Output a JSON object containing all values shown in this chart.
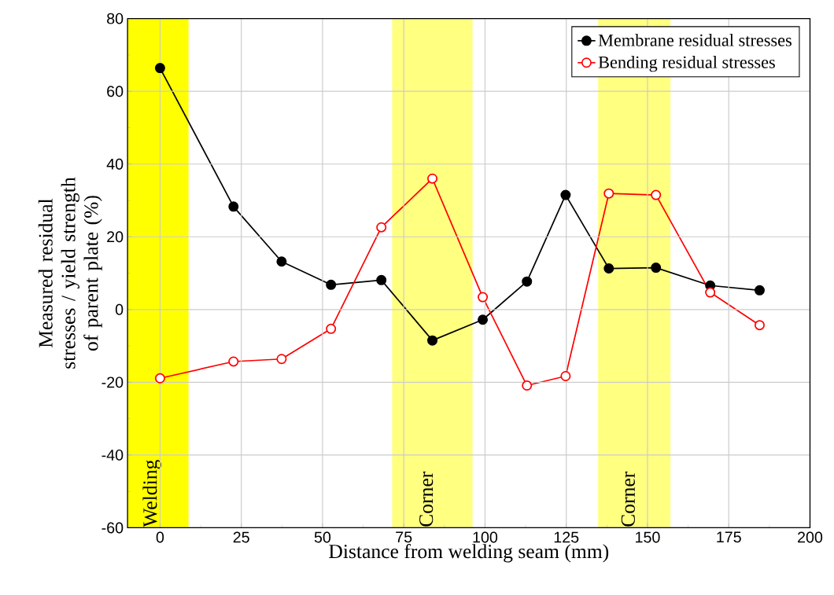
{
  "chart_data": {
    "type": "line",
    "xlabel": "Distance from welding seam (mm)",
    "ylabel": "Measured residual stresses / yield strength of parent plate (%)",
    "x": [
      0,
      22.6,
      37.4,
      52.6,
      68.1,
      83.8,
      99.3,
      112.9,
      124.8,
      138.1,
      152.6,
      169.3,
      184.5
    ],
    "series": [
      {
        "name": "Membrane residual stresses",
        "color": "#000000",
        "marker": "circle",
        "values": [
          66.4,
          28.3,
          13.2,
          6.8,
          8.1,
          -8.5,
          -2.8,
          7.7,
          31.5,
          11.3,
          11.5,
          6.6,
          5.3
        ]
      },
      {
        "name": "Bending residual stresses",
        "color": "#ff0000",
        "marker": "open circle",
        "values": [
          -18.9,
          -14.3,
          -13.6,
          -5.3,
          22.6,
          36.0,
          3.4,
          -20.9,
          -18.3,
          31.9,
          31.5,
          4.7,
          -4.3
        ]
      }
    ],
    "bands": [
      {
        "axis": "x",
        "from": -10,
        "to": 8.8,
        "label": "Welding",
        "color": "#ffff00"
      },
      {
        "axis": "x",
        "from": 71.4,
        "to": 96.2,
        "label": "Corner",
        "color": "#ffff80"
      },
      {
        "axis": "x",
        "from": 134.8,
        "to": 157.1,
        "label": "Corner",
        "color": "#ffff80"
      }
    ],
    "xlim": [
      -10,
      200
    ],
    "ylim": [
      -60,
      80
    ],
    "xticks": [
      0,
      25,
      50,
      75,
      100,
      125,
      150,
      175,
      200
    ],
    "yticks": [
      -60,
      -40,
      -20,
      0,
      20,
      40,
      60,
      80
    ],
    "grid": true,
    "legend": "top right",
    "line_style": "solid"
  }
}
